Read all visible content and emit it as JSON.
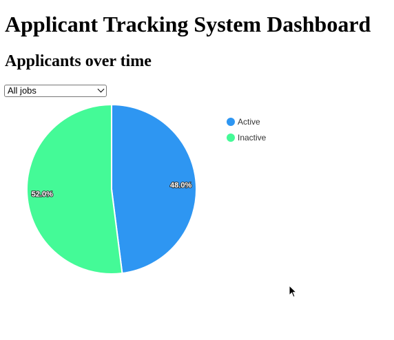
{
  "header": {
    "title": "Applicant Tracking System Dashboard"
  },
  "section": {
    "title": "Applicants over time"
  },
  "filter": {
    "selected": "All jobs"
  },
  "chart_data": {
    "type": "pie",
    "title": "",
    "legend_position": "right",
    "slices": [
      {
        "label": "Active",
        "value": 48.0,
        "display": "48.0%",
        "color": "#2e96f2"
      },
      {
        "label": "Inactive",
        "value": 52.0,
        "display": "52.0%",
        "color": "#44fa97"
      }
    ]
  }
}
